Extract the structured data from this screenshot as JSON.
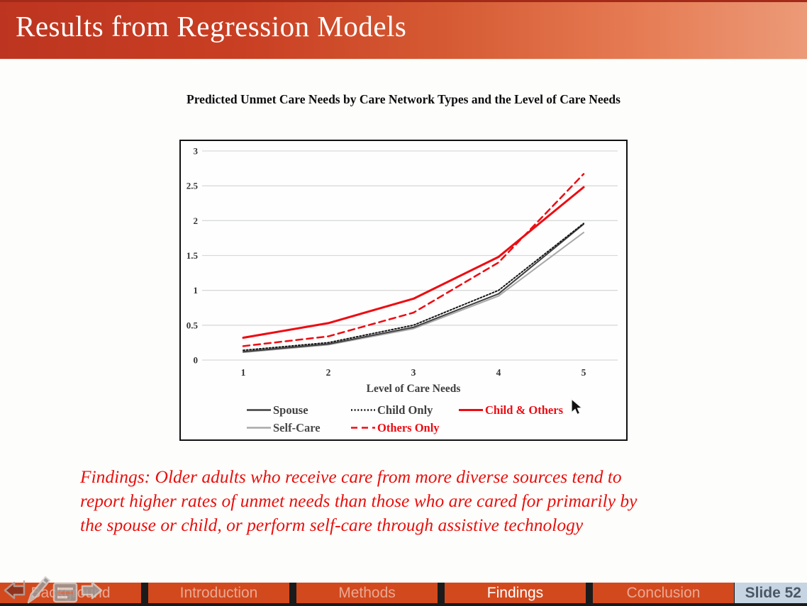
{
  "header": {
    "title": "Results from Regression Models"
  },
  "chart_data": {
    "type": "line",
    "title": "Predicted Unmet Care Needs by Care Network Types and the Level of Care Needs",
    "xlabel": "Level of Care Needs",
    "ylabel": "",
    "x": [
      1,
      2,
      3,
      4,
      5
    ],
    "x_tick_labels": [
      "1",
      "2",
      "3",
      "4",
      "5"
    ],
    "y_ticks": [
      0,
      0.5,
      1,
      1.5,
      2,
      2.5,
      3
    ],
    "y_tick_labels": [
      "0",
      "0.5",
      "1",
      "1.5",
      "2",
      "2.5",
      "3"
    ],
    "ylim": [
      0,
      3
    ],
    "grid": "horizontal-only",
    "legend_position": "bottom",
    "series": [
      {
        "name": "Self-Care",
        "color": "#a8a8a8",
        "label_color": "#4a4a4a",
        "dash": "solid",
        "width": 2,
        "values": [
          0.11,
          0.22,
          0.45,
          0.92,
          1.83
        ]
      },
      {
        "name": "Spouse",
        "color": "#3f3f3f",
        "label_color": "#404040",
        "dash": "solid",
        "width": 2,
        "values": [
          0.12,
          0.23,
          0.47,
          0.95,
          1.95
        ]
      },
      {
        "name": "Child Only",
        "color": "#171717",
        "label_color": "#404040",
        "dash": "dotted",
        "width": 2,
        "values": [
          0.14,
          0.25,
          0.5,
          1.0,
          1.96
        ]
      },
      {
        "name": "Others Only",
        "color": "#ed0b12",
        "label_color": "#ed0b12",
        "dash": "dashed",
        "width": 2.5,
        "values": [
          0.2,
          0.34,
          0.68,
          1.4,
          2.67
        ]
      },
      {
        "name": "Child & Others",
        "color": "#ed0b12",
        "label_color": "#ed0b12",
        "dash": "solid",
        "width": 3,
        "values": [
          0.32,
          0.53,
          0.88,
          1.48,
          2.48
        ]
      }
    ],
    "legend_rows": [
      [
        "Spouse",
        "Child Only",
        "Child & Others"
      ],
      [
        "Self-Care",
        "Others Only"
      ]
    ]
  },
  "findings": {
    "lines": [
      "Findings: Older adults who receive care from more diverse sources tend to",
      "report higher rates of unmet needs than those who are cared for primarily by",
      "the spouse or child, or perform self-care through assistive technology"
    ]
  },
  "nav": {
    "tabs": [
      {
        "label": "Background",
        "active": false
      },
      {
        "label": "Introduction",
        "active": false
      },
      {
        "label": "Methods",
        "active": false
      },
      {
        "label": "Findings",
        "active": true
      },
      {
        "label": "Conclusion",
        "active": false
      }
    ],
    "slide_label": "Slide 52"
  },
  "presenter_controls": {
    "icons": [
      "previous-slide-arrow",
      "pen-tool",
      "annotation-menu",
      "next-slide-arrow"
    ]
  },
  "colors": {
    "header_gradient_start": "#bd3520",
    "header_gradient_end": "#ec9a78",
    "tab_bar": "#d2491e",
    "accent_red": "#ed0b12",
    "findings_red": "#e8100c",
    "slide_badge_bg": "#c7d5e3",
    "gridline": "#d9d9d9"
  }
}
